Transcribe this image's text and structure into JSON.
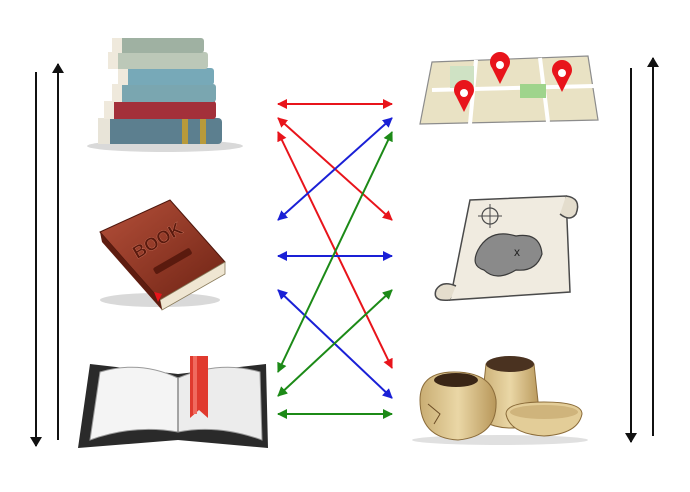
{
  "colors": {
    "red": "#e8141b",
    "blue": "#1a20d6",
    "green": "#1c8a17",
    "black": "#111111",
    "book_red": "#8e2f1f",
    "map_bg": "#e9e2c4",
    "scroll_bg": "#f0ebe0",
    "pot": "#d7c08c"
  },
  "labels": {
    "closed_book_word": "BOOK"
  },
  "left_items": [
    {
      "name": "stack-of-books-icon"
    },
    {
      "name": "closed-book-icon"
    },
    {
      "name": "open-book-icon"
    }
  ],
  "right_items": [
    {
      "name": "map-with-pins-icon"
    },
    {
      "name": "treasure-map-scroll-icon"
    },
    {
      "name": "clay-pots-icon"
    }
  ],
  "connections": [
    {
      "from": "left-1",
      "to": "right-1",
      "color": "red",
      "direction": "bidirectional"
    },
    {
      "from": "left-1",
      "to": "right-2",
      "color": "red",
      "direction": "bidirectional"
    },
    {
      "from": "left-1",
      "to": "right-3",
      "color": "red",
      "direction": "bidirectional"
    },
    {
      "from": "left-2",
      "to": "right-1",
      "color": "blue",
      "direction": "bidirectional"
    },
    {
      "from": "left-2",
      "to": "right-2",
      "color": "blue",
      "direction": "bidirectional"
    },
    {
      "from": "left-2",
      "to": "right-3",
      "color": "blue",
      "direction": "bidirectional"
    },
    {
      "from": "left-3",
      "to": "right-1",
      "color": "green",
      "direction": "bidirectional"
    },
    {
      "from": "left-3",
      "to": "right-2",
      "color": "green",
      "direction": "bidirectional"
    },
    {
      "from": "left-3",
      "to": "right-3",
      "color": "green",
      "direction": "bidirectional"
    }
  ],
  "side_arrows": [
    {
      "side": "left",
      "directions": [
        "down",
        "up"
      ]
    },
    {
      "side": "right",
      "directions": [
        "down",
        "up"
      ]
    }
  ]
}
